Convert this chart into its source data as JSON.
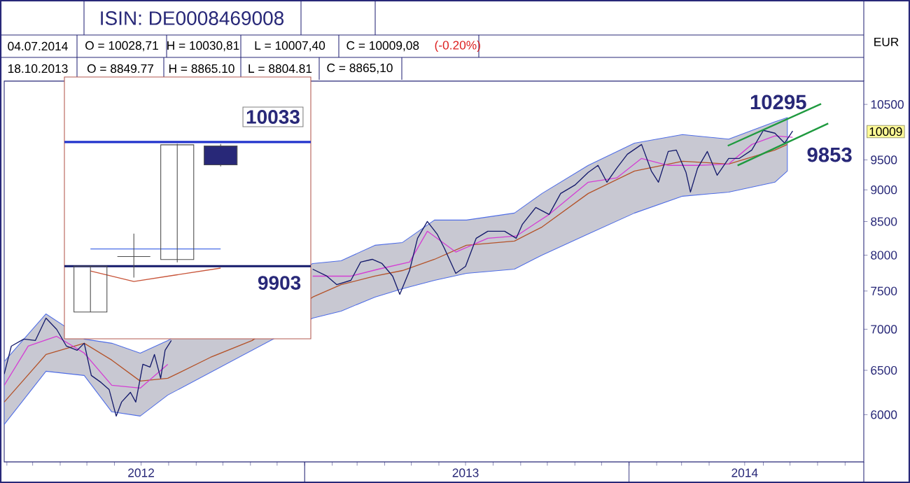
{
  "chart_data": [
    {
      "type": "line",
      "title": "ISIN: DE0008469008",
      "ylabel": "EUR",
      "log": true,
      "xlim": [
        "2012-01-29",
        "2014-09-22"
      ],
      "ylim": [
        5510,
        10950
      ],
      "yticks": [
        6000,
        6500,
        7000,
        7500,
        8000,
        8500,
        9000,
        9500,
        10500
      ],
      "xticks": [
        {
          "value": "2012-02-01",
          "label": null
        },
        {
          "value": "2012-03-01",
          "label": null
        },
        {
          "value": "2012-04-01",
          "label": null
        },
        {
          "value": "2012-05-01",
          "label": null
        },
        {
          "value": "2012-06-01",
          "label": null
        },
        {
          "value": "2012-07-01",
          "label": "2012"
        },
        {
          "value": "2012-08-01",
          "label": null
        },
        {
          "value": "2012-09-01",
          "label": null
        },
        {
          "value": "2012-10-01",
          "label": null
        },
        {
          "value": "2012-11-01",
          "label": null
        },
        {
          "value": "2012-12-01",
          "label": null
        },
        {
          "value": "2013-01-01",
          "label": null
        },
        {
          "value": "2013-02-01",
          "label": null
        },
        {
          "value": "2013-03-01",
          "label": null
        },
        {
          "value": "2013-04-01",
          "label": null
        },
        {
          "value": "2013-05-01",
          "label": null
        },
        {
          "value": "2013-06-01",
          "label": null
        },
        {
          "value": "2013-07-01",
          "label": "2013"
        },
        {
          "value": "2013-08-01",
          "label": null
        },
        {
          "value": "2013-09-01",
          "label": null
        },
        {
          "value": "2013-10-01",
          "label": null
        },
        {
          "value": "2013-11-01",
          "label": null
        },
        {
          "value": "2013-12-01",
          "label": null
        },
        {
          "value": "2014-01-01",
          "label": null
        },
        {
          "value": "2014-02-01",
          "label": null
        },
        {
          "value": "2014-03-01",
          "label": null
        },
        {
          "value": "2014-04-01",
          "label": null
        },
        {
          "value": "2014-05-11",
          "label": "2014"
        },
        {
          "value": "2014-06-01",
          "label": null
        },
        {
          "value": "2014-07-01",
          "label": null
        },
        {
          "value": "2014-08-01",
          "label": null
        },
        {
          "value": "2014-09-01",
          "label": null
        }
      ],
      "series": [
        {
          "color": "#b4532a",
          "x": [
            "2012-01-29",
            "2012-03-16",
            "2012-04-28",
            "2012-05-29",
            "2012-06-30",
            "2012-07-31",
            "2012-09-17",
            "2012-11-03",
            "2013-01-10",
            "2013-02-11",
            "2013-03-21",
            "2013-04-21",
            "2013-05-27",
            "2013-07-02",
            "2013-08-25",
            "2013-09-25",
            "2013-11-16",
            "2014-01-07",
            "2014-03-02",
            "2014-04-23",
            "2014-06-14",
            "2014-06-28"
          ],
          "values": [
            6138,
            6688,
            6825,
            6621,
            6375,
            6407,
            6654,
            6859,
            7418,
            7588,
            7704,
            7782,
            7941,
            8144,
            8206,
            8417,
            8942,
            9311,
            9477,
            9429,
            9670,
            9768
          ],
          "upper": [
            6604,
            7196,
            6877,
            6825,
            6705,
            6859,
            null,
            null,
            7881,
            7921,
            8144,
            8185,
            8523,
            8523,
            8631,
            8942,
            9406,
            9792,
            9943,
            9863,
            10174,
            10253
          ],
          "lower": [
            5895,
            6489,
            6440,
            6031,
            5985,
            6216,
            null,
            null,
            7142,
            7233,
            7418,
            7531,
            7646,
            7743,
            7802,
            8001,
            8311,
            8631,
            8897,
            8964,
            9125,
            9311
          ]
        },
        {
          "color": "#d43fd4",
          "x": [
            "2012-01-29",
            "2012-02-25",
            "2012-03-28",
            "2012-04-28",
            "2012-05-29",
            "2012-06-30",
            "2012-07-31",
            "2012-10-01",
            "2013-01-10",
            "2013-02-22",
            "2013-03-25",
            "2013-04-29",
            "2013-05-19",
            "2013-06-20",
            "2013-07-26",
            "2013-08-27",
            "2013-10-03",
            "2013-11-16",
            "2013-12-18",
            "2014-01-15",
            "2014-02-14",
            "2014-03-19",
            "2014-04-23",
            "2014-05-19",
            "2014-06-14",
            "2014-07-04"
          ],
          "values": [
            6327,
            6790,
            6911,
            6705,
            6327,
            6295,
            6571,
            null,
            7704,
            7704,
            7802,
            7901,
            8353,
            8045,
            8248,
            8281,
            8610,
            9125,
            9196,
            9525,
            9406,
            9406,
            9429,
            9768,
            9920,
            9895
          ]
        },
        {
          "color": "#141a6b",
          "x": [
            "2012-01-29",
            "2012-02-06",
            "2012-02-20",
            "2012-03-04",
            "2012-03-16",
            "2012-03-28",
            "2012-04-08",
            "2012-04-20",
            "2012-04-28",
            "2012-05-06",
            "2012-05-17",
            "2012-05-26",
            "2012-06-03",
            "2012-06-09",
            "2012-06-19",
            "2012-06-25",
            "2012-07-03",
            "2012-07-11",
            "2012-07-16",
            "2012-07-23",
            "2012-07-28",
            "2012-08-04",
            "2012-10-01",
            "2013-01-10",
            "2013-01-26",
            "2013-02-06",
            "2013-02-22",
            "2013-03-05",
            "2013-03-18",
            "2013-03-29",
            "2013-04-10",
            "2013-04-18",
            "2013-04-29",
            "2013-05-08",
            "2013-05-19",
            "2013-05-30",
            "2013-06-07",
            "2013-06-20",
            "2013-07-01",
            "2013-07-13",
            "2013-07-26",
            "2013-08-14",
            "2013-08-27",
            "2013-09-03",
            "2013-09-18",
            "2013-10-03",
            "2013-10-16",
            "2013-11-01",
            "2013-11-16",
            "2013-11-27",
            "2013-12-07",
            "2013-12-18",
            "2013-12-30",
            "2014-01-15",
            "2014-01-26",
            "2014-02-03",
            "2014-02-14",
            "2014-02-23",
            "2014-03-06",
            "2014-03-11",
            "2014-03-19",
            "2014-03-30",
            "2014-04-10",
            "2014-04-23",
            "2014-05-05",
            "2014-05-19",
            "2014-06-01",
            "2014-06-14",
            "2014-06-25",
            "2014-07-04"
          ],
          "values": [
            6456,
            6790,
            6877,
            6859,
            7142,
            6999,
            6790,
            6739,
            6825,
            6440,
            6359,
            6279,
            5985,
            6138,
            6247,
            6138,
            6571,
            6538,
            6688,
            6407,
            6739,
            6859,
            null,
            7802,
            7704,
            7588,
            7646,
            7901,
            7941,
            7881,
            7704,
            7456,
            7782,
            8248,
            8502,
            8311,
            8104,
            7743,
            7841,
            8248,
            8353,
            8353,
            8248,
            8459,
            8719,
            8610,
            8942,
            9078,
            9288,
            9406,
            9125,
            9358,
            9597,
            9768,
            9311,
            9125,
            9645,
            9670,
            9288,
            8964,
            9358,
            9645,
            9241,
            9525,
            9525,
            9670,
            10019,
            9969,
            9792,
            10009
          ]
        },
        {
          "color": "#1f9a3f",
          "x": [
            "2014-04-22",
            "2014-08-05"
          ],
          "values": [
            9745,
            10510
          ]
        },
        {
          "color": "#1f9a3f",
          "x": [
            "2014-05-03",
            "2014-08-13"
          ],
          "values": [
            9405,
            10146
          ]
        }
      ],
      "annotations": [
        "04.07.2014",
        "O = 10028,71",
        "H = 10030,81",
        "L = 10007,40",
        "C = 10009,08",
        "(-0.20%)",
        "18.10.2013",
        "O = 8849.77",
        "H = 8865.10",
        "L = 8804.81",
        "C = 8865,10",
        {
          "text": "10295",
          "x": "2014-07-14",
          "y": 10295
        },
        {
          "text": "9853",
          "x": "2014-07-11",
          "y": 9853
        },
        "10009"
      ]
    },
    {
      "type": "candlestick",
      "categories": [
        null,
        null,
        null,
        null
      ],
      "ylim": [
        9827,
        10101
      ],
      "tick_labels": false,
      "ohlc": [
        [
          9855,
          9903,
          9855,
          9903
        ],
        [
          9913,
          9937,
          9891,
          9913
        ],
        [
          9910,
          10031,
          9907,
          10030
        ],
        [
          10028.71,
          10030.81,
          10007.4,
          10009.08
        ]
      ],
      "series": [
        {
          "type": "line",
          "color": "#4a6ee6",
          "values": [
            9921,
            9921,
            9921,
            9921
          ]
        },
        {
          "type": "line",
          "color": "#c8553a",
          "values": [
            9898,
            9887,
            9894,
            9901
          ]
        }
      ],
      "ref_lines": [
        {
          "axis": "y",
          "value": 10033,
          "label": "10033",
          "color": "#2233cc"
        },
        {
          "axis": "y",
          "value": 9903,
          "label": "9903",
          "color": "#141a6b"
        }
      ]
    }
  ]
}
